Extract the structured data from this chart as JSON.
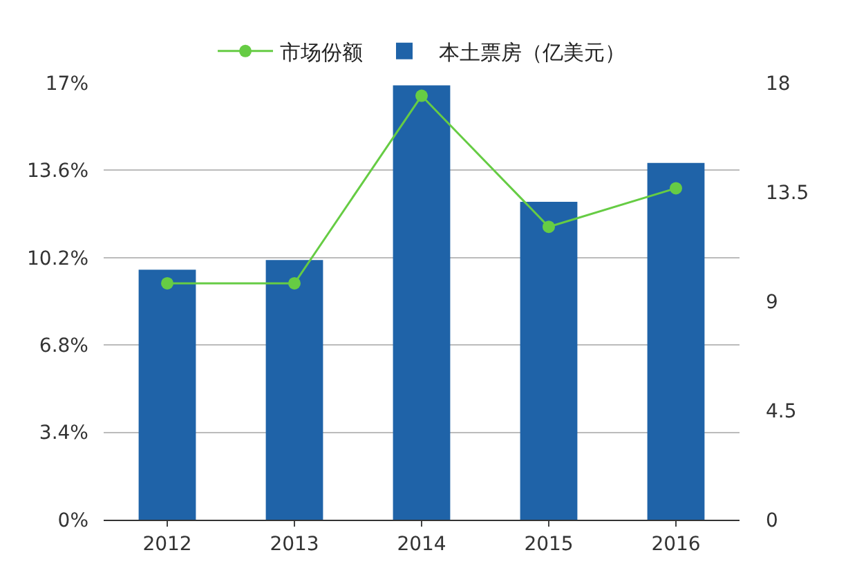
{
  "chart_data": {
    "type": "bar",
    "categories": [
      "2012",
      "2013",
      "2014",
      "2015",
      "2016"
    ],
    "series": [
      {
        "name": "市场份额",
        "type": "line",
        "color": "#66cc44",
        "values": [
          9.2,
          9.2,
          16.5,
          11.4,
          12.9
        ]
      },
      {
        "name": "本土票房（亿美元）",
        "axis": "y2",
        "color": "#1f63a8",
        "values": [
          10.3,
          10.7,
          17.9,
          13.1,
          14.7
        ]
      }
    ],
    "ylim": [
      0,
      17
    ],
    "yticks": [
      {
        "value": 0,
        "label": "0%"
      },
      {
        "value": 3.4,
        "label": "3.4%"
      },
      {
        "value": 6.8,
        "label": "6.8%"
      },
      {
        "value": 10.2,
        "label": "10.2%"
      },
      {
        "value": 13.6,
        "label": "13.6%"
      },
      {
        "value": 17,
        "label": "17%"
      }
    ],
    "y2lim": [
      0,
      18
    ],
    "y2ticks": [
      0,
      4.5,
      9,
      13.5,
      18
    ],
    "grid": "y",
    "legend": "top",
    "marker": "circle",
    "line_style": "solid"
  }
}
